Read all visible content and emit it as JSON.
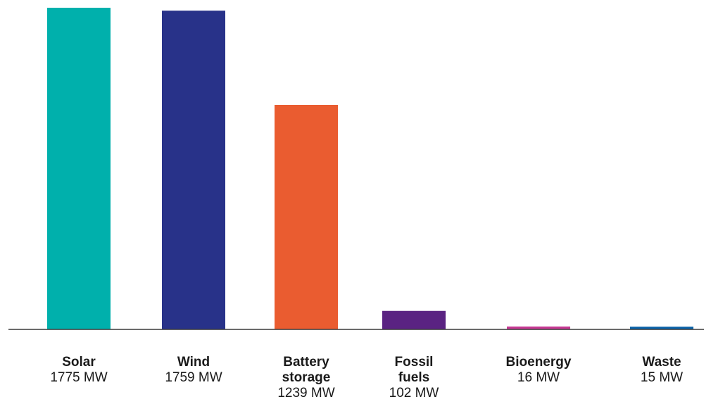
{
  "chart_data": {
    "type": "bar",
    "title": "",
    "xlabel": "",
    "ylabel": "",
    "unit": "MW",
    "ylim": [
      0,
      1775
    ],
    "grid": false,
    "categories": [
      "Solar",
      "Wind",
      "Battery\nstorage",
      "Fossil\nfuels",
      "Bioenergy",
      "Waste"
    ],
    "values": [
      1775,
      1759,
      1239,
      102,
      16,
      15
    ],
    "value_labels": [
      "1775 MW",
      "1759 MW",
      "1239 MW",
      "102 MW",
      "16 MW",
      "15 MW"
    ],
    "colors": [
      "#00b0ac",
      "#283289",
      "#ea5c30",
      "#5a2382",
      "#c63a93",
      "#0a62a8"
    ]
  }
}
